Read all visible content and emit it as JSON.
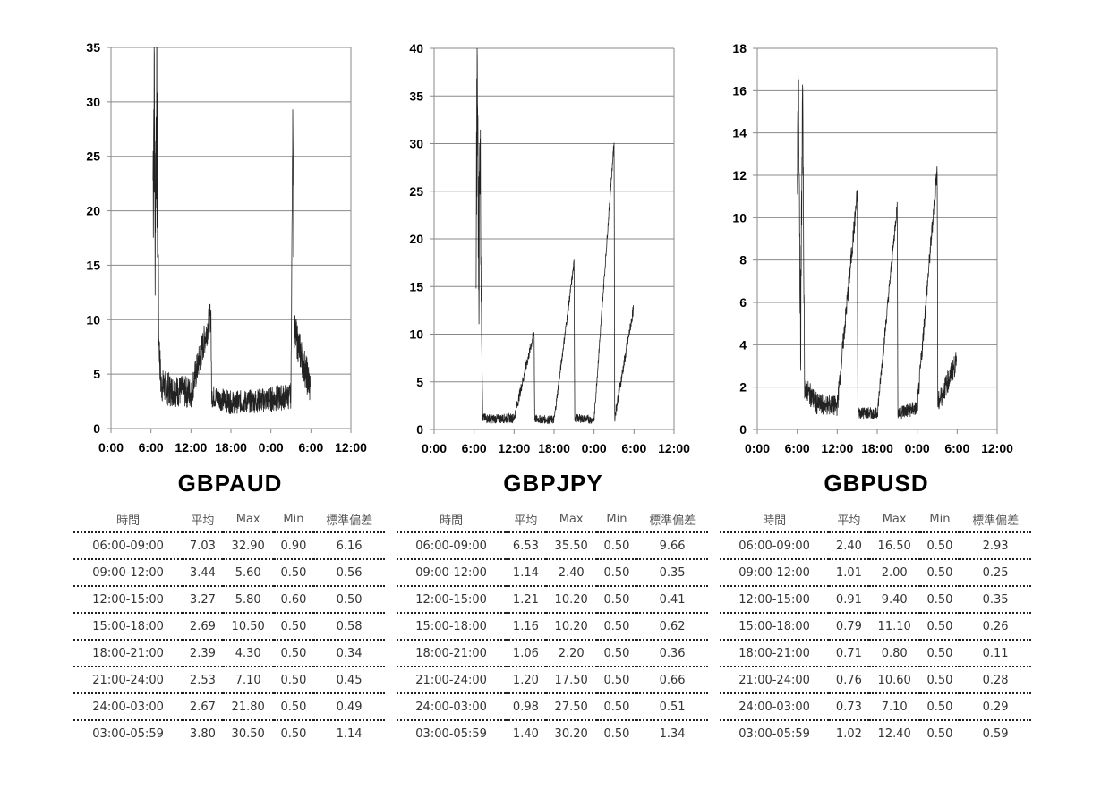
{
  "chart_data": [
    {
      "type": "line",
      "pair": "GBPAUD",
      "ylim": [
        0,
        35
      ],
      "yticks": [
        "0",
        "5",
        "10",
        "15",
        "20",
        "25",
        "30",
        "35"
      ],
      "xticks": [
        "0:00",
        "6:00",
        "12:00",
        "18:00",
        "0:00",
        "6:00",
        "12:00"
      ],
      "grid": true,
      "series_points": [
        [
          6.3,
          23
        ],
        [
          6.5,
          32.9
        ],
        [
          6.6,
          17
        ],
        [
          6.8,
          30.5
        ],
        [
          7.0,
          20
        ],
        [
          7.2,
          8
        ],
        [
          7.5,
          4
        ],
        [
          9,
          3.5
        ],
        [
          12,
          3.3
        ],
        [
          15,
          10.5
        ],
        [
          15.1,
          3
        ],
        [
          18,
          2.4
        ],
        [
          21,
          2.5
        ],
        [
          24,
          2.7
        ],
        [
          27,
          3
        ],
        [
          27.3,
          30.5
        ],
        [
          27.5,
          9
        ],
        [
          29.9,
          3.8
        ]
      ]
    },
    {
      "type": "line",
      "pair": "GBPJPY",
      "ylim": [
        0,
        40
      ],
      "yticks": [
        "0",
        "5",
        "10",
        "15",
        "20",
        "25",
        "30",
        "35",
        "40"
      ],
      "xticks": [
        "0:00",
        "6:00",
        "12:00",
        "18:00",
        "0:00",
        "6:00",
        "12:00"
      ],
      "grid": true,
      "series_points": [
        [
          6.3,
          22
        ],
        [
          6.5,
          35.5
        ],
        [
          6.7,
          16
        ],
        [
          6.9,
          33
        ],
        [
          7.1,
          12
        ],
        [
          7.3,
          1.2
        ],
        [
          9,
          1.1
        ],
        [
          12,
          1.2
        ],
        [
          15,
          10.2
        ],
        [
          15.1,
          1.1
        ],
        [
          18,
          1
        ],
        [
          21,
          17.5
        ],
        [
          21.1,
          1.2
        ],
        [
          24,
          1
        ],
        [
          27,
          30.2
        ],
        [
          27.1,
          1.3
        ],
        [
          29.9,
          12.6
        ]
      ]
    },
    {
      "type": "line",
      "pair": "GBPUSD",
      "ylim": [
        0,
        18
      ],
      "yticks": [
        "0",
        "2",
        "4",
        "6",
        "8",
        "10",
        "12",
        "14",
        "16",
        "18"
      ],
      "xticks": [
        "0:00",
        "6:00",
        "12:00",
        "18:00",
        "0:00",
        "6:00",
        "12:00"
      ],
      "grid": true,
      "series_points": [
        [
          6.0,
          9.5
        ],
        [
          6.2,
          16.5
        ],
        [
          6.5,
          4
        ],
        [
          6.8,
          16.4
        ],
        [
          7.1,
          2
        ],
        [
          9,
          1.2
        ],
        [
          12,
          1.1
        ],
        [
          15,
          11.1
        ],
        [
          15.1,
          0.8
        ],
        [
          18,
          0.7
        ],
        [
          21,
          10.6
        ],
        [
          21.1,
          0.8
        ],
        [
          24,
          1
        ],
        [
          27,
          12.4
        ],
        [
          27.1,
          1.2
        ],
        [
          29.9,
          3.2
        ]
      ]
    }
  ],
  "titles": {
    "gbpaud": "GBPAUD",
    "gbpjpy": "GBPJPY",
    "gbpusd": "GBPUSD"
  },
  "table_headers": [
    "時間",
    "平均",
    "Max",
    "Min",
    "標準偏差"
  ],
  "tables": {
    "gbpaud": [
      [
        "06:00-09:00",
        "7.03",
        "32.90",
        "0.90",
        "6.16"
      ],
      [
        "09:00-12:00",
        "3.44",
        "5.60",
        "0.50",
        "0.56"
      ],
      [
        "12:00-15:00",
        "3.27",
        "5.80",
        "0.60",
        "0.50"
      ],
      [
        "15:00-18:00",
        "2.69",
        "10.50",
        "0.50",
        "0.58"
      ],
      [
        "18:00-21:00",
        "2.39",
        "4.30",
        "0.50",
        "0.34"
      ],
      [
        "21:00-24:00",
        "2.53",
        "7.10",
        "0.50",
        "0.45"
      ],
      [
        "24:00-03:00",
        "2.67",
        "21.80",
        "0.50",
        "0.49"
      ],
      [
        "03:00-05:59",
        "3.80",
        "30.50",
        "0.50",
        "1.14"
      ]
    ],
    "gbpjpy": [
      [
        "06:00-09:00",
        "6.53",
        "35.50",
        "0.50",
        "9.66"
      ],
      [
        "09:00-12:00",
        "1.14",
        "2.40",
        "0.50",
        "0.35"
      ],
      [
        "12:00-15:00",
        "1.21",
        "10.20",
        "0.50",
        "0.41"
      ],
      [
        "15:00-18:00",
        "1.16",
        "10.20",
        "0.50",
        "0.62"
      ],
      [
        "18:00-21:00",
        "1.06",
        "2.20",
        "0.50",
        "0.36"
      ],
      [
        "21:00-24:00",
        "1.20",
        "17.50",
        "0.50",
        "0.66"
      ],
      [
        "24:00-03:00",
        "0.98",
        "27.50",
        "0.50",
        "0.51"
      ],
      [
        "03:00-05:59",
        "1.40",
        "30.20",
        "0.50",
        "1.34"
      ]
    ],
    "gbpusd": [
      [
        "06:00-09:00",
        "2.40",
        "16.50",
        "0.50",
        "2.93"
      ],
      [
        "09:00-12:00",
        "1.01",
        "2.00",
        "0.50",
        "0.25"
      ],
      [
        "12:00-15:00",
        "0.91",
        "9.40",
        "0.50",
        "0.35"
      ],
      [
        "15:00-18:00",
        "0.79",
        "11.10",
        "0.50",
        "0.26"
      ],
      [
        "18:00-21:00",
        "0.71",
        "0.80",
        "0.50",
        "0.11"
      ],
      [
        "21:00-24:00",
        "0.76",
        "10.60",
        "0.50",
        "0.28"
      ],
      [
        "24:00-03:00",
        "0.73",
        "7.10",
        "0.50",
        "0.29"
      ],
      [
        "03:00-05:59",
        "1.02",
        "12.40",
        "0.50",
        "0.59"
      ]
    ]
  },
  "colors": {
    "line": "#222222",
    "grid": "#888888",
    "axis": "#888888"
  }
}
